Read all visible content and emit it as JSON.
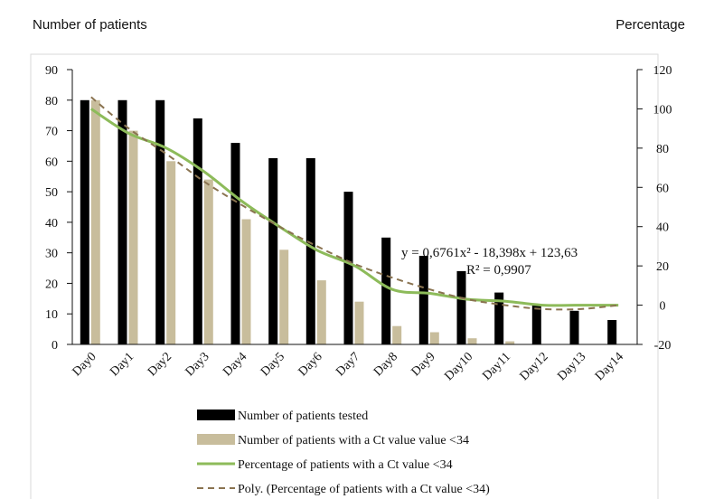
{
  "header": {
    "left_axis_title": "Number of patients",
    "right_axis_title": "Percentage"
  },
  "chart_data": {
    "type": "bar",
    "categories": [
      "Day0",
      "Day1",
      "Day2",
      "Day3",
      "Day4",
      "Day5",
      "Day6",
      "Day7",
      "Day8",
      "Day9",
      "Day10",
      "Day11",
      "Day12",
      "Day13",
      "Day14"
    ],
    "series": [
      {
        "name": "Number of patients tested",
        "kind": "bar",
        "axis": "left",
        "color": "#000000",
        "values": [
          80,
          80,
          80,
          74,
          66,
          61,
          61,
          50,
          35,
          29,
          24,
          17,
          13,
          11,
          8
        ]
      },
      {
        "name": "Number of patients with a Ct value value <34",
        "kind": "bar",
        "axis": "left",
        "color": "#c8bd9c",
        "values": [
          80,
          70,
          60,
          54,
          41,
          31,
          21,
          14,
          6,
          4,
          2,
          1,
          0,
          0,
          0
        ]
      },
      {
        "name": "Percentage of patients with a Ct value <34",
        "kind": "line",
        "axis": "right",
        "color": "#8dbb5a",
        "values": [
          100,
          87.5,
          80,
          68,
          53,
          40,
          28,
          20,
          8,
          6,
          3,
          2,
          0,
          0,
          0
        ]
      },
      {
        "name": "Poly. (Percentage of patients with a Ct value <34)",
        "kind": "trend",
        "axis": "right",
        "color": "#8a7350",
        "dashed": true,
        "values": [
          106,
          90,
          77,
          63,
          51,
          40,
          30,
          21,
          14,
          8,
          3,
          0,
          -2,
          -2,
          0
        ]
      }
    ],
    "ylim_left": [
      0,
      90
    ],
    "yticks_left": [
      0,
      10,
      20,
      30,
      40,
      50,
      60,
      70,
      80,
      90
    ],
    "ylim_right": [
      -20,
      120
    ],
    "yticks_right": [
      -20,
      0,
      20,
      40,
      60,
      80,
      100,
      120
    ],
    "annotations": [
      "y = 0,6761x² - 18,398x + 123,63",
      "R² = 0,9907"
    ],
    "legend_position": "bottom",
    "grid": false
  }
}
